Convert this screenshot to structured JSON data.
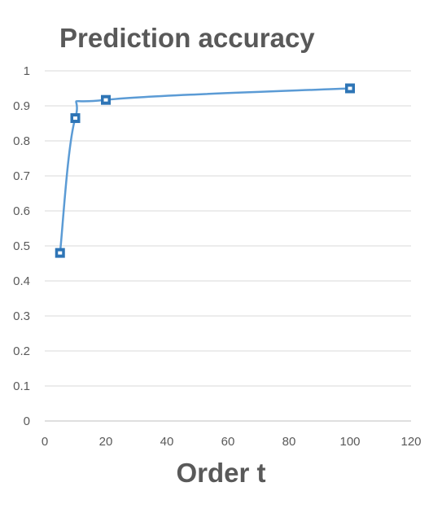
{
  "chart_data": {
    "type": "scatter",
    "title": "Prediction accuracy",
    "xlabel": "Order t",
    "ylabel": "",
    "xlim": [
      0,
      120
    ],
    "ylim": [
      0,
      1
    ],
    "x_ticks": [
      "0",
      "20",
      "40",
      "60",
      "80",
      "100",
      "120"
    ],
    "y_ticks": [
      "0",
      "0.1",
      "0.2",
      "0.3",
      "0.4",
      "0.5",
      "0.6",
      "0.7",
      "0.8",
      "0.9",
      "1"
    ],
    "grid": "horizontal",
    "smooth_line": true,
    "legend": "none",
    "series": [
      {
        "color": "#5B9BD5",
        "marker_color": "#2E75B6",
        "x": [
          5,
          10,
          20,
          100
        ],
        "y": [
          0.48,
          0.865,
          0.917,
          0.95
        ]
      }
    ]
  }
}
